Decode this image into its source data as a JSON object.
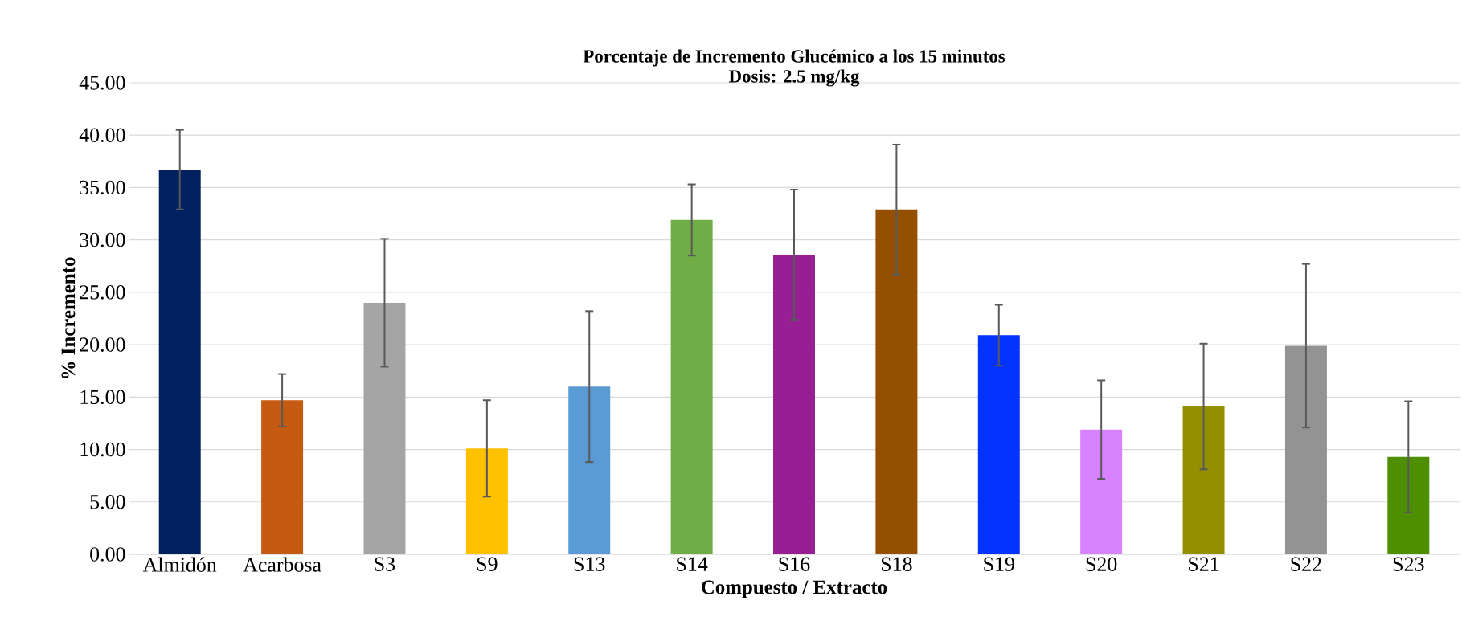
{
  "chart_data": {
    "type": "bar",
    "title": "Porcentaje de Incremento Glucémico a los 15 minutos",
    "subtitle": "Dosis: 2.5 mg/kg",
    "xlabel": "Compuesto / Extracto",
    "ylabel": "% Incremento",
    "categories": [
      "Almidón",
      "Acarbosa",
      "S3",
      "S9",
      "S13",
      "S14",
      "S16",
      "S18",
      "S19",
      "S20",
      "S21",
      "S22",
      "S23"
    ],
    "values": [
      36.7,
      14.7,
      24.0,
      10.1,
      16.0,
      31.9,
      28.6,
      32.9,
      20.9,
      11.9,
      14.1,
      19.9,
      9.3
    ],
    "errors": [
      3.8,
      2.5,
      6.1,
      4.6,
      7.2,
      3.4,
      6.2,
      6.2,
      2.9,
      4.7,
      6.0,
      7.8,
      5.3
    ],
    "colors": [
      "#002060",
      "#c55a11",
      "#a5a5a5",
      "#ffc000",
      "#5b9bd5",
      "#70ad47",
      "#951f93",
      "#954f00",
      "#0432ff",
      "#d783ff",
      "#948f00",
      "#939393",
      "#4e8f00"
    ],
    "ylim": [
      0,
      45
    ],
    "yticks": [
      {
        "value": 0,
        "label": "0.00"
      },
      {
        "value": 5,
        "label": "5.00"
      },
      {
        "value": 10,
        "label": "10.00"
      },
      {
        "value": 15,
        "label": "15.00"
      },
      {
        "value": 20,
        "label": "20.00"
      },
      {
        "value": 25,
        "label": "25.00"
      },
      {
        "value": 30,
        "label": "30.00"
      },
      {
        "value": 35,
        "label": "35.00"
      },
      {
        "value": 40,
        "label": "40.00"
      },
      {
        "value": 45,
        "label": "45.00"
      }
    ],
    "grid": "y"
  }
}
